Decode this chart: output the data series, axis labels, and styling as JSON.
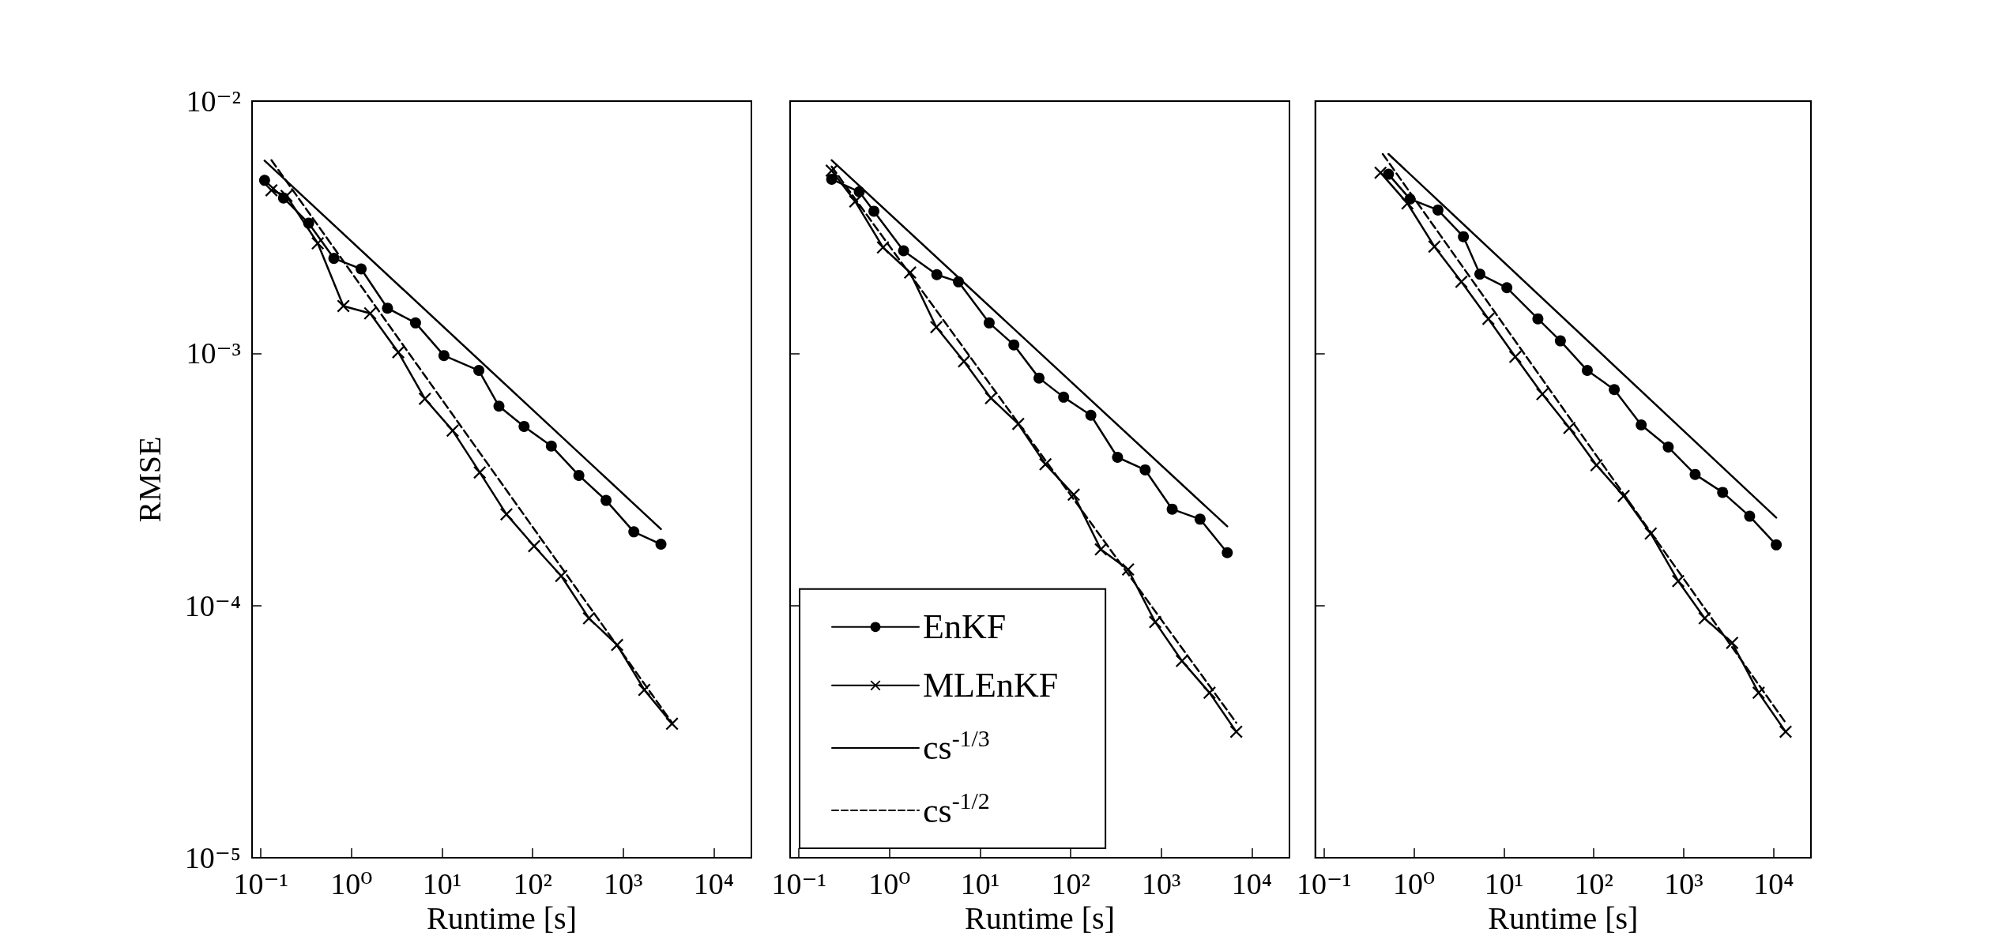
{
  "chart_data": [
    {
      "type": "line",
      "ylabel": "RMSE",
      "xlabel": "Runtime [s]",
      "log": "xy",
      "grid": false,
      "legend": false,
      "xlim": [
        0.08,
        26000
      ],
      "ylim": [
        1e-05,
        0.01
      ],
      "xticks": [
        {
          "value": 0.1,
          "label": "10⁻¹"
        },
        {
          "value": 1,
          "label": "10⁰"
        },
        {
          "value": 10,
          "label": "10¹"
        },
        {
          "value": 100,
          "label": "10²"
        },
        {
          "value": 1000,
          "label": "10³"
        },
        {
          "value": 10000,
          "label": "10⁴"
        }
      ],
      "yticks": [
        {
          "value": 1e-05,
          "label": "10⁻⁵"
        },
        {
          "value": 0.0001,
          "label": "10⁻⁴"
        },
        {
          "value": 0.001,
          "label": "10⁻³"
        },
        {
          "value": 0.01,
          "label": "10⁻²"
        }
      ],
      "series": [
        {
          "type": "line",
          "color": "#000000",
          "marker": "circle",
          "line_style": "solid",
          "x": [
            0.11,
            0.178,
            0.337,
            0.64,
            1.28,
            2.5,
            5.1,
            10.5,
            25.5,
            42.5,
            80.5,
            161,
            324,
            647,
            1310,
            2610
          ],
          "values": [
            0.00485,
            0.00413,
            0.00328,
            0.00238,
            0.00216,
            0.00151,
            0.00132,
            0.00098,
            0.000855,
            0.000617,
            0.000513,
            0.000429,
            0.000328,
            0.000261,
            0.000196,
            0.000175
          ]
        },
        {
          "type": "line",
          "color": "#000000",
          "marker": "cross",
          "line_style": "solid",
          "x": [
            0.131,
            0.192,
            0.425,
            0.815,
            1.61,
            3.29,
            6.47,
            13.1,
            26.1,
            51.4,
            104,
            207,
            419,
            857,
            1710,
            3460
          ],
          "values": [
            0.00443,
            0.00421,
            0.00273,
            0.00154,
            0.00144,
            0.00101,
            0.00066,
            0.000494,
            0.000337,
            0.00023,
            0.000172,
            0.000131,
            8.9e-05,
            6.98e-05,
            4.63e-05,
            3.4e-05
          ]
        },
        {
          "type": "line",
          "color": "#000000",
          "marker": "none",
          "line_style": "solid",
          "x": [
            0.11,
            2610
          ],
          "values": [
            0.00581,
            0.000201
          ]
        },
        {
          "type": "line",
          "color": "#000000",
          "marker": "none",
          "line_style": "dashed",
          "x": [
            0.131,
            3460
          ],
          "values": [
            0.00583,
            3.43e-05
          ]
        }
      ]
    },
    {
      "type": "line",
      "xlabel": "Runtime [s]",
      "log": "xy",
      "grid": false,
      "legend": "bottom left",
      "tick_labels": "x",
      "xlim": [
        0.08,
        26000
      ],
      "ylim": [
        1e-05,
        0.01
      ],
      "xticks": [
        {
          "value": 0.1,
          "label": "10⁻¹"
        },
        {
          "value": 1,
          "label": "10⁰"
        },
        {
          "value": 10,
          "label": "10¹"
        },
        {
          "value": 100,
          "label": "10²"
        },
        {
          "value": 1000,
          "label": "10³"
        },
        {
          "value": 10000,
          "label": "10⁴"
        }
      ],
      "yticks": [
        {
          "value": 1e-05,
          "label": null
        },
        {
          "value": 0.0001,
          "label": null
        },
        {
          "value": 0.001,
          "label": null
        },
        {
          "value": 0.01,
          "label": null
        }
      ],
      "series": [
        {
          "type": "line",
          "name": "EnKF",
          "color": "#000000",
          "marker": "circle",
          "line_style": "solid",
          "x": [
            0.23,
            0.464,
            0.673,
            1.43,
            3.33,
            5.77,
            12.6,
            23.6,
            44.7,
            83.6,
            167,
            329,
            664,
            1320,
            2680,
            5350
          ],
          "values": [
            0.0049,
            0.00437,
            0.00366,
            0.00255,
            0.00205,
            0.00192,
            0.00132,
            0.00108,
            0.000798,
            0.00067,
            0.000568,
            0.000387,
            0.000345,
            0.000241,
            0.00022,
            0.000162
          ]
        },
        {
          "type": "line",
          "name": "MLEnKF",
          "color": "#000000",
          "marker": "cross",
          "line_style": "solid",
          "x": [
            0.23,
            0.419,
            0.847,
            1.69,
            3.29,
            6.64,
            13.2,
            26.4,
            52.7,
            108,
            215,
            430,
            857,
            1690,
            3410,
            6730
          ],
          "values": [
            0.0053,
            0.004,
            0.00263,
            0.00209,
            0.00127,
            0.000929,
            0.000664,
            0.000525,
            0.000363,
            0.000275,
            0.000167,
            0.000139,
            8.6e-05,
            6.03e-05,
            4.51e-05,
            3.16e-05
          ]
        },
        {
          "type": "line",
          "name": "cs$^{-1/3}$",
          "color": "#000000",
          "marker": "none",
          "line_style": "solid",
          "x": [
            0.23,
            5350
          ],
          "values": [
            0.00583,
            0.000206
          ]
        },
        {
          "type": "line",
          "name": "cs$^{-1/2}$",
          "color": "#000000",
          "marker": "none",
          "line_style": "dashed",
          "x": [
            0.23,
            6730
          ],
          "values": [
            0.0055,
            3.43e-05
          ]
        }
      ]
    },
    {
      "type": "line",
      "xlabel": "Runtime [s]",
      "log": "xy",
      "grid": false,
      "legend": false,
      "tick_labels": "x",
      "xlim": [
        0.08,
        26000
      ],
      "ylim": [
        1e-05,
        0.01
      ],
      "xticks": [
        {
          "value": 0.1,
          "label": "10⁻¹"
        },
        {
          "value": 1,
          "label": "10⁰"
        },
        {
          "value": 10,
          "label": "10¹"
        },
        {
          "value": 100,
          "label": "10²"
        },
        {
          "value": 1000,
          "label": "10³"
        },
        {
          "value": 10000,
          "label": "10⁴"
        }
      ],
      "yticks": [
        {
          "value": 1e-05,
          "label": null
        },
        {
          "value": 0.0001,
          "label": null
        },
        {
          "value": 0.001,
          "label": null
        },
        {
          "value": 0.01,
          "label": null
        }
      ],
      "series": [
        {
          "type": "line",
          "color": "#000000",
          "marker": "circle",
          "line_style": "solid",
          "x": [
            0.521,
            0.904,
            1.85,
            3.55,
            5.41,
            10.8,
            23.9,
            42.5,
            84.7,
            169,
            337,
            673,
            1340,
            2710,
            5410,
            10700
          ],
          "values": [
            0.00513,
            0.00409,
            0.0037,
            0.0029,
            0.00206,
            0.00182,
            0.00137,
            0.00112,
            0.000855,
            0.000718,
            0.00052,
            0.000425,
            0.000331,
            0.000281,
            0.000226,
            0.000174
          ]
        },
        {
          "type": "line",
          "color": "#000000",
          "marker": "cross",
          "line_style": "solid",
          "x": [
            0.425,
            0.847,
            1.69,
            3.37,
            6.73,
            13.4,
            26.8,
            53.5,
            107,
            215,
            430,
            869,
            1710,
            3460,
            6810,
            13600
          ],
          "values": [
            0.0052,
            0.00393,
            0.00265,
            0.00192,
            0.00137,
            0.000968,
            0.000689,
            0.000506,
            0.00036,
            0.000272,
            0.000193,
            0.000125,
            8.9e-05,
            7.11e-05,
            4.51e-05,
            3.16e-05
          ]
        },
        {
          "type": "line",
          "color": "#000000",
          "marker": "none",
          "line_style": "solid",
          "x": [
            0.521,
            10700
          ],
          "values": [
            0.00617,
            0.000223
          ]
        },
        {
          "type": "line",
          "color": "#000000",
          "marker": "none",
          "line_style": "dashed",
          "x": [
            0.45,
            13600
          ],
          "values": [
            0.00617,
            3.43e-05
          ]
        }
      ]
    }
  ]
}
